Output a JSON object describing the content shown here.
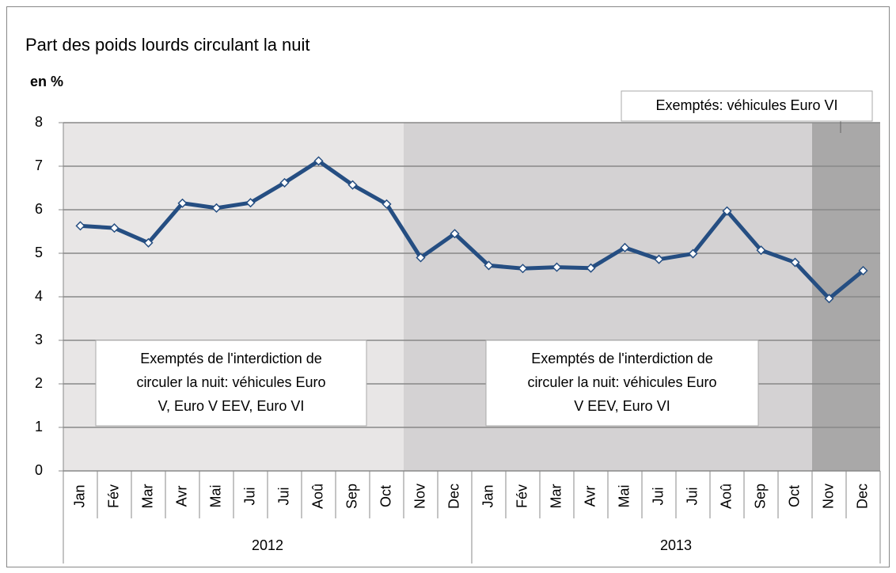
{
  "chart_data": {
    "type": "line",
    "title": "Part des poids lourds circulant la nuit",
    "y_label": "en %",
    "categories": [
      "Jan",
      "Fév",
      "Mar",
      "Avr",
      "Mai",
      "Jui",
      "Jui",
      "Aoû",
      "Sep",
      "Oct",
      "Nov",
      "Dec",
      "Jan",
      "Fév",
      "Mar",
      "Avr",
      "Mai",
      "Jui",
      "Jui",
      "Aoû",
      "Sep",
      "Oct",
      "Nov",
      "Dec"
    ],
    "x_groups": [
      "2012",
      "2013"
    ],
    "series": [
      {
        "name": "Part des poids lourds",
        "color": "#254e82",
        "values": [
          5.63,
          5.58,
          5.24,
          6.15,
          6.04,
          6.16,
          6.62,
          7.12,
          6.57,
          6.13,
          4.9,
          5.45,
          4.72,
          4.65,
          4.68,
          4.66,
          5.13,
          4.86,
          4.99,
          5.97,
          5.07,
          4.79,
          3.96,
          4.6
        ]
      }
    ],
    "ylim": [
      0,
      8
    ],
    "yticks": [
      0,
      1,
      2,
      3,
      4,
      5,
      6,
      7,
      8
    ],
    "grid": true,
    "periods": [
      {
        "start": 0,
        "end": 9,
        "color": "#e8e6e6",
        "lines": [
          "Exemptés de l'interdiction de",
          "circuler la nuit: véhicules Euro",
          "V, Euro V EEV, Euro VI"
        ]
      },
      {
        "start": 10,
        "end": 21,
        "color": "#d4d2d3",
        "lines": [
          "Exemptés de l'interdiction de",
          "circuler la nuit: véhicules Euro",
          "V EEV, Euro VI"
        ]
      },
      {
        "start": 22,
        "end": 23,
        "color": "#a9a8a8",
        "lines": [
          "Exemptés: véhicules Euro VI"
        ]
      }
    ]
  }
}
